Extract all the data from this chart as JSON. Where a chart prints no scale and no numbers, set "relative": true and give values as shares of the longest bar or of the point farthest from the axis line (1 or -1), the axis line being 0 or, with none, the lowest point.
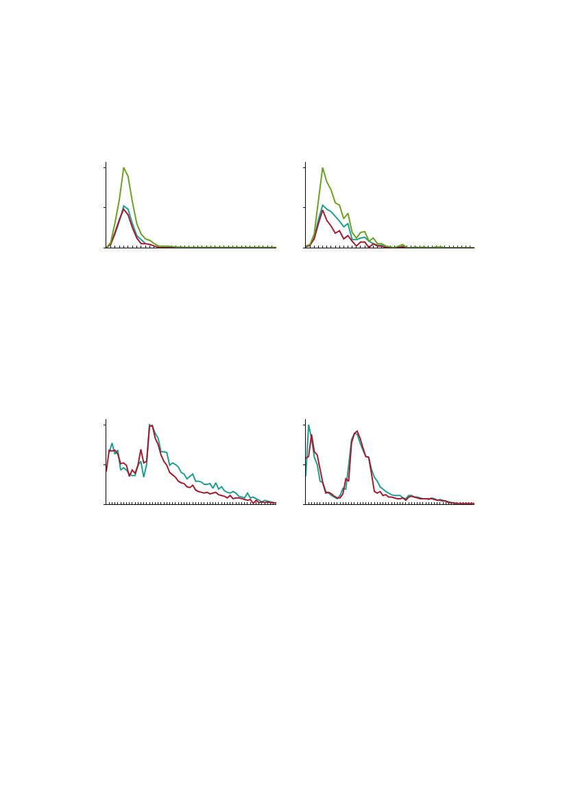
{
  "chart_data": [
    {
      "type": "line",
      "relative": true,
      "marker": "none",
      "line_style": "solid",
      "categories": [
        null,
        null,
        null,
        null,
        null,
        null,
        null,
        null,
        null,
        null,
        null,
        null,
        null,
        null,
        null,
        null,
        null,
        null,
        null,
        null,
        null,
        null,
        null,
        null,
        null,
        null,
        null,
        null,
        null,
        null,
        null,
        null,
        null,
        null,
        null,
        null,
        null,
        null,
        null,
        null
      ],
      "series": [
        {
          "color": "#1a9e8f",
          "values": [
            null,
            0.04,
            0.17,
            0.33,
            0.52,
            0.48,
            0.3,
            0.15,
            0.1,
            0.05,
            null,
            null,
            null,
            null,
            null,
            null,
            null,
            null,
            null,
            null,
            null,
            null,
            null,
            null,
            null,
            null,
            null,
            null,
            null,
            null,
            null,
            null,
            null,
            null,
            null,
            null,
            null,
            null,
            null,
            null
          ]
        },
        {
          "color": "#a6192e",
          "values": [
            0,
            0.04,
            0.19,
            0.35,
            0.48,
            0.41,
            0.25,
            0.12,
            0.05,
            0.05,
            0.04,
            0.02,
            0.005,
            0.005,
            0.005,
            0.005,
            0.005,
            null,
            null,
            null,
            null,
            null,
            null,
            null,
            null,
            null,
            null,
            null,
            null,
            null,
            null,
            null,
            null,
            null,
            null,
            null,
            null,
            null,
            null,
            null
          ]
        },
        {
          "color": "#6aa121",
          "values": [
            0,
            0.06,
            0.31,
            0.6,
            1.0,
            0.89,
            0.57,
            0.3,
            0.17,
            0.11,
            0.09,
            0.05,
            0.02,
            0.02,
            0.02,
            0.014,
            0.011,
            0.008,
            0.005,
            0.005,
            0.005,
            0.005,
            0.005,
            0.005,
            0.005,
            0.005,
            0.005,
            0.005,
            0.005,
            0.005,
            0.005,
            0.005,
            0.005,
            0.005,
            0.005,
            0.005,
            0.005,
            0.005,
            0.005,
            0.005
          ]
        }
      ]
    },
    {
      "type": "line",
      "relative": true,
      "marker": "none",
      "line_style": "solid",
      "categories": [
        null,
        null,
        null,
        null,
        null,
        null,
        null,
        null,
        null,
        null,
        null,
        null,
        null,
        null,
        null,
        null,
        null,
        null,
        null,
        null,
        null,
        null,
        null,
        null,
        null,
        null,
        null,
        null,
        null,
        null,
        null,
        null,
        null,
        null,
        null,
        null,
        null,
        null,
        null,
        null,
        null
      ],
      "series": [
        {
          "color": "#1a9e8f",
          "values": [
            0.01,
            0.03,
            0.12,
            0.35,
            0.53,
            0.48,
            0.45,
            0.39,
            0.33,
            0.26,
            0.3,
            0.1,
            0.1,
            0.12,
            0.13,
            0.08,
            0.05,
            0.03,
            0.03,
            0.01,
            0,
            0,
            0,
            0.02,
            0,
            0,
            null,
            null,
            null,
            null,
            null,
            null,
            null,
            null,
            null,
            null,
            null,
            null,
            null,
            null,
            null
          ]
        },
        {
          "color": "#a6192e",
          "values": [
            0.01,
            0.03,
            0.11,
            0.3,
            0.47,
            0.34,
            0.27,
            0.18,
            0.21,
            0.11,
            0.15,
            0.08,
            0.02,
            0.07,
            0.07,
            0,
            0.05,
            0.02,
            0.02,
            0,
            0,
            0,
            0,
            0.01,
            0,
            0,
            null,
            null,
            null,
            null,
            null,
            null,
            null,
            null,
            null,
            null,
            null,
            null,
            null,
            null,
            null
          ]
        },
        {
          "color": "#6aa121",
          "values": [
            0.02,
            0.04,
            0.17,
            0.59,
            1.0,
            0.82,
            0.72,
            0.56,
            0.53,
            0.36,
            0.43,
            0.19,
            0.12,
            0.19,
            0.2,
            0.08,
            0.12,
            0.05,
            0.05,
            0.02,
            0.01,
            0,
            0.02,
            0.04,
            0,
            0,
            0.01,
            0,
            0.01,
            0,
            0,
            0.01,
            0.01,
            0,
            0,
            0,
            0,
            0,
            0,
            0,
            0
          ]
        }
      ]
    },
    {
      "type": "line",
      "relative": true,
      "marker": "none",
      "line_style": "solid",
      "categories": [
        null,
        null,
        null,
        null,
        null,
        null,
        null,
        null,
        null,
        null,
        null,
        null,
        null,
        null,
        null,
        null,
        null,
        null,
        null,
        null,
        null,
        null,
        null,
        null,
        null,
        null,
        null,
        null,
        null,
        null,
        null,
        null,
        null,
        null,
        null,
        null,
        null,
        null,
        null,
        null,
        null,
        null,
        null,
        null,
        null,
        null,
        null,
        null,
        null,
        null,
        null,
        null,
        null,
        null,
        null,
        null,
        null,
        null,
        null,
        null
      ],
      "series": [
        {
          "color": "#1a9e8f",
          "values": [
            null,
            0.65,
            0.77,
            0.63,
            0.68,
            0.43,
            0.46,
            0.43,
            0.38,
            0.36,
            0.36,
            0.49,
            0.54,
            0.34,
            0.5,
            1.0,
            0.98,
            0.89,
            0.83,
            0.66,
            0.66,
            0.65,
            0.49,
            0.52,
            0.5,
            0.47,
            0.4,
            0.38,
            0.32,
            0.35,
            0.38,
            0.29,
            0.29,
            0.28,
            0.25,
            0.25,
            0.26,
            0.2,
            0.27,
            0.19,
            0.22,
            0.17,
            0.15,
            0.14,
            0.16,
            0.14,
            0.1,
            0.09,
            0.08,
            0.14,
            0.08,
            0.09,
            0.07,
            0.05,
            0.03,
            0.05,
            0.04,
            0.03,
            0.02,
            0.02
          ]
        },
        {
          "color": "#a6192e",
          "values": [
            0.41,
            0.68,
            0.67,
            0.68,
            0.63,
            0.51,
            0.52,
            0.49,
            0.35,
            0.43,
            0.39,
            0.49,
            0.69,
            0.52,
            0.54,
            0.98,
            0.99,
            0.83,
            0.75,
            0.62,
            0.54,
            0.49,
            0.4,
            0.37,
            0.34,
            0.29,
            0.27,
            0.26,
            0.22,
            0.21,
            0.24,
            0.18,
            0.16,
            0.15,
            0.14,
            0.15,
            0.13,
            0.14,
            0.15,
            0.12,
            0.11,
            0.1,
            0.08,
            0.11,
            0.07,
            0.08,
            0.08,
            0.07,
            0.06,
            0.05,
            0.06,
            0.01,
            0.05,
            0.02,
            0.03,
            0.02,
            0.03,
            0.02,
            0.02,
            0.01
          ]
        }
      ]
    },
    {
      "type": "line",
      "relative": true,
      "marker": "none",
      "line_style": "solid",
      "categories": [
        null,
        null,
        null,
        null,
        null,
        null,
        null,
        null,
        null,
        null,
        null,
        null,
        null,
        null,
        null,
        null,
        null,
        null,
        null,
        null,
        null,
        null,
        null,
        null,
        null,
        null,
        null,
        null,
        null,
        null,
        null,
        null,
        null,
        null,
        null,
        null,
        null,
        null,
        null,
        null,
        null,
        null,
        null,
        null,
        null,
        null,
        null,
        null,
        null,
        null,
        null,
        null,
        null,
        null,
        null,
        null,
        null,
        null,
        null,
        null
      ],
      "series": [
        {
          "color": "#1a9e8f",
          "values": [
            0.35,
            1.0,
            0.83,
            0.59,
            0.5,
            0.29,
            0.27,
            0.16,
            0.14,
            0.11,
            0.09,
            0.07,
            0.11,
            0.2,
            0.19,
            0.49,
            0.81,
            0.89,
            0.88,
            0.77,
            0.68,
            0.6,
            0.59,
            0.44,
            0.34,
            0.29,
            0.22,
            0.19,
            0.16,
            0.14,
            0.12,
            0.11,
            0.11,
            0.11,
            0.08,
            0.07,
            0.11,
            0.11,
            0.09,
            0.09,
            0.08,
            0.07,
            0.07,
            0.06,
            0.08,
            0.07,
            0.05,
            0.06,
            0.05,
            0.04,
            0.03,
            0.02,
            0.02,
            0.01,
            null,
            null,
            null,
            null,
            null,
            null
          ]
        },
        {
          "color": "#a6192e",
          "values": [
            0.58,
            0.6,
            0.88,
            0.66,
            0.62,
            0.44,
            0.26,
            0.14,
            0.15,
            0.13,
            0.1,
            0.08,
            0.08,
            0.13,
            0.32,
            0.29,
            0.77,
            0.89,
            0.92,
            0.83,
            0.71,
            0.6,
            0.59,
            0.38,
            0.16,
            0.14,
            0.16,
            0.11,
            0.12,
            0.09,
            0.09,
            0.08,
            0.07,
            0.07,
            0.08,
            0.05,
            0.09,
            0.1,
            0.09,
            0.08,
            0.07,
            0.07,
            0.07,
            0.07,
            0.07,
            0.06,
            0.05,
            0.05,
            0.04,
            0.04,
            0.02,
            0.02,
            0.01,
            0.01,
            0.01,
            0.01,
            0.01,
            0.01,
            0.01,
            0.01
          ]
        }
      ]
    }
  ]
}
